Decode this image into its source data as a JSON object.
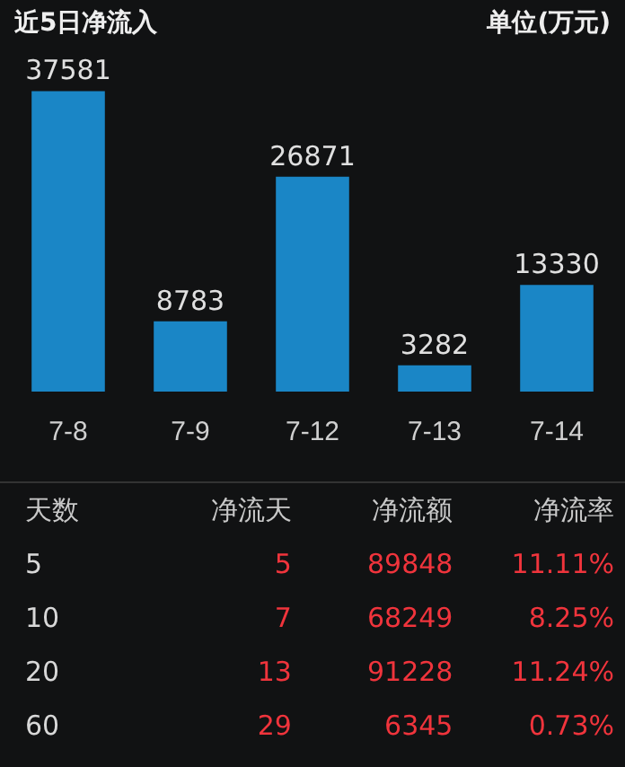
{
  "chart_data": [
    {
      "type": "bar",
      "title": "近5日净流入",
      "subtitle": "单位(万元)",
      "categories": [
        "7-8",
        "7-9",
        "7-12",
        "7-13",
        "7-14"
      ],
      "values": [
        37581,
        8783,
        26871,
        3282,
        13330
      ],
      "color": "#1a86c6",
      "data_labels": true,
      "grid": false,
      "legend": false
    },
    {
      "type": "other",
      "categories": [
        "天数",
        "净流天",
        "净流额",
        "净流率"
      ],
      "colors": [
        "#d8d8d8",
        "#f0343c",
        "#f0343c",
        "#f0343c"
      ],
      "cell_labels": [
        [
          "5",
          "5",
          "89848",
          "11.11%"
        ],
        [
          "10",
          "7",
          "68249",
          "8.25%"
        ],
        [
          "20",
          "13",
          "91228",
          "11.24%"
        ],
        [
          "60",
          "29",
          "6345",
          "0.73%"
        ]
      ]
    }
  ]
}
